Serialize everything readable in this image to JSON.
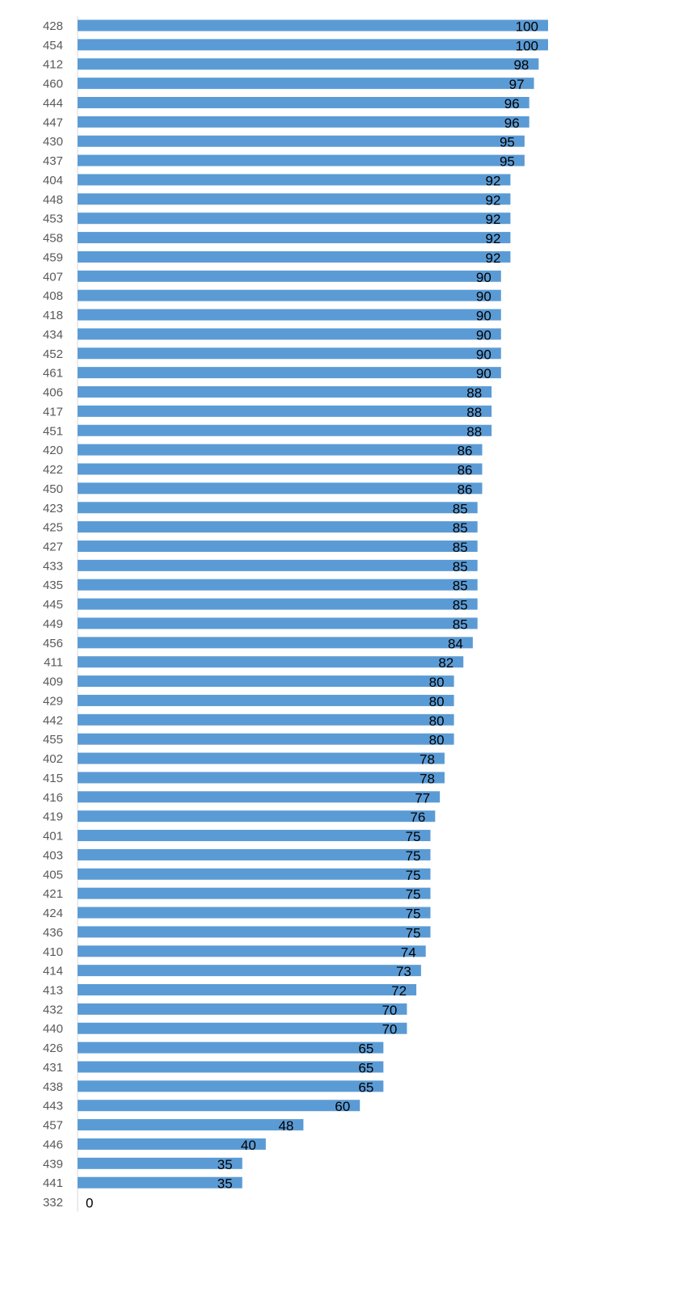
{
  "chart_data": {
    "type": "bar",
    "orientation": "horizontal",
    "categories": [
      "428",
      "454",
      "412",
      "460",
      "444",
      "447",
      "430",
      "437",
      "404",
      "448",
      "453",
      "458",
      "459",
      "407",
      "408",
      "418",
      "434",
      "452",
      "461",
      "406",
      "417",
      "451",
      "420",
      "422",
      "450",
      "423",
      "425",
      "427",
      "433",
      "435",
      "445",
      "449",
      "456",
      "411",
      "409",
      "429",
      "442",
      "455",
      "402",
      "415",
      "416",
      "419",
      "401",
      "403",
      "405",
      "421",
      "424",
      "436",
      "410",
      "414",
      "413",
      "432",
      "440",
      "426",
      "431",
      "438",
      "443",
      "457",
      "446",
      "439",
      "441",
      "332"
    ],
    "values": [
      100,
      100,
      98,
      97,
      96,
      96,
      95,
      95,
      92,
      92,
      92,
      92,
      92,
      90,
      90,
      90,
      90,
      90,
      90,
      88,
      88,
      88,
      86,
      86,
      86,
      85,
      85,
      85,
      85,
      85,
      85,
      85,
      84,
      82,
      80,
      80,
      80,
      80,
      78,
      78,
      77,
      76,
      75,
      75,
      75,
      75,
      75,
      75,
      74,
      73,
      72,
      70,
      70,
      65,
      65,
      65,
      60,
      48,
      40,
      35,
      35,
      0
    ],
    "xlim": [
      0,
      100
    ],
    "data_labels": true,
    "grid": false,
    "legend": "none",
    "bar_color": "#5b9bd5",
    "label_color": "#000000",
    "tick_color": "#595959",
    "axis_color": "#d9d9d9"
  }
}
